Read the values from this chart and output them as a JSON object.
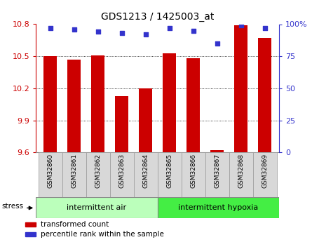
{
  "title": "GDS1213 / 1425003_at",
  "samples": [
    "GSM32860",
    "GSM32861",
    "GSM32862",
    "GSM32863",
    "GSM32864",
    "GSM32865",
    "GSM32866",
    "GSM32867",
    "GSM32868",
    "GSM32869"
  ],
  "transformed_counts": [
    10.5,
    10.47,
    10.51,
    10.13,
    10.2,
    10.53,
    10.48,
    9.62,
    10.79,
    10.67
  ],
  "percentile_ranks": [
    97,
    96,
    94,
    93,
    92,
    97,
    95,
    85,
    99,
    97
  ],
  "ylim_left": [
    9.6,
    10.8
  ],
  "ylim_right": [
    0,
    100
  ],
  "yticks_left": [
    9.6,
    9.9,
    10.2,
    10.5,
    10.8
  ],
  "yticks_right": [
    0,
    25,
    50,
    75,
    100
  ],
  "ytick_labels_left": [
    "9.6",
    "9.9",
    "10.2",
    "10.5",
    "10.8"
  ],
  "ytick_labels_right": [
    "0",
    "25",
    "50",
    "75",
    "100%"
  ],
  "bar_color": "#cc0000",
  "dot_color": "#3333cc",
  "group1_label": "intermittent air",
  "group2_label": "intermittent hypoxia",
  "group1_color": "#bbffbb",
  "group2_color": "#44ee44",
  "stress_label": "stress",
  "left_axis_color": "#cc0000",
  "right_axis_color": "#3333cc",
  "grid_color": "#000000",
  "background_color": "#ffffff",
  "sample_box_color": "#d8d8d8",
  "legend_items": [
    "transformed count",
    "percentile rank within the sample"
  ],
  "legend_colors": [
    "#cc0000",
    "#3333cc"
  ],
  "bar_width": 0.55
}
